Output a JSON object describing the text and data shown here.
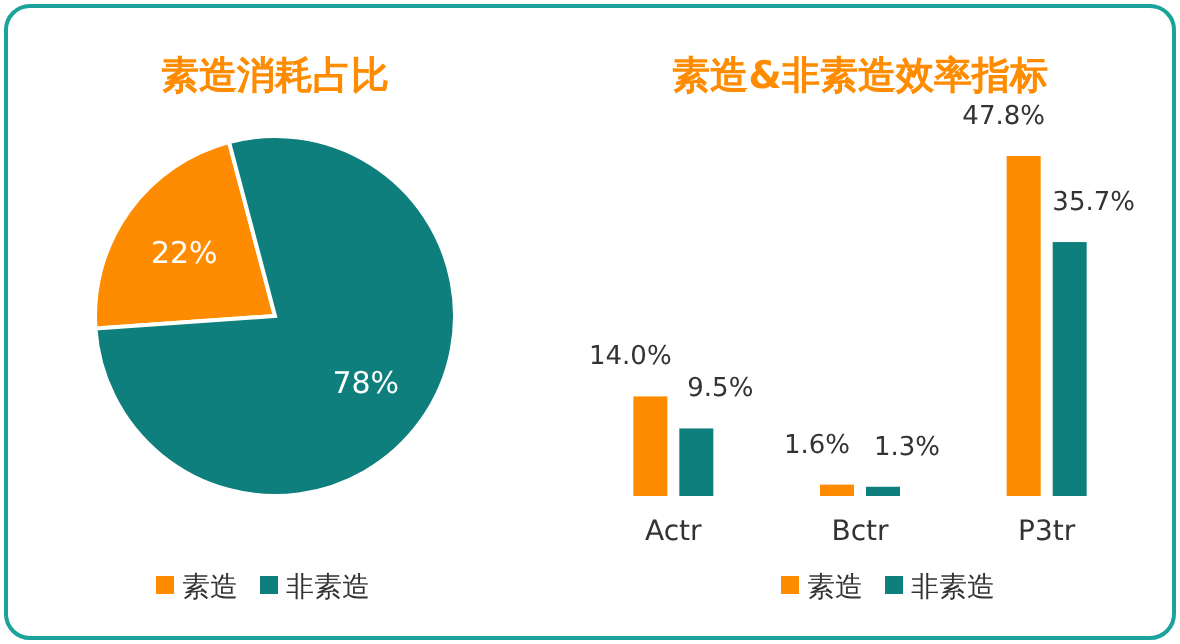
{
  "chart_data": [
    {
      "type": "pie",
      "title": "素造消耗占比",
      "categories": [
        "素造",
        "非素造"
      ],
      "values": [
        22,
        78
      ],
      "colors": [
        "#ff8c00",
        "#0e7f7c"
      ],
      "value_labels": [
        "22%",
        "78%"
      ],
      "legend": "bottom"
    },
    {
      "type": "bar",
      "title": "素造&非素造效率指标",
      "categories": [
        "Actr",
        "Bctr",
        "P3tr"
      ],
      "series": [
        {
          "name": "素造",
          "color": "#ff8c00",
          "values": [
            14.0,
            1.6,
            47.8
          ],
          "value_labels": [
            "14.0%",
            "1.6%",
            "47.8%"
          ]
        },
        {
          "name": "非素造",
          "color": "#0e7f7c",
          "values": [
            9.5,
            1.3,
            35.7
          ],
          "value_labels": [
            "9.5%",
            "1.3%",
            "35.7%"
          ]
        }
      ],
      "legend": "bottom"
    }
  ]
}
